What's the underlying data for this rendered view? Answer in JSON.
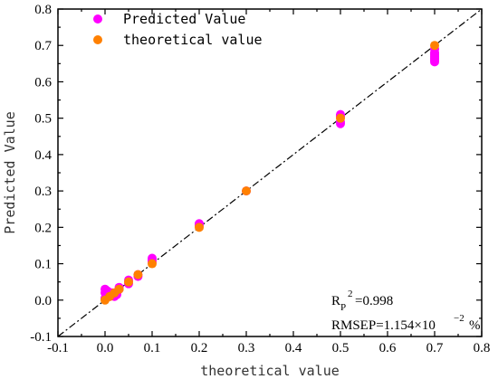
{
  "chart_data": {
    "type": "scatter",
    "xlabel": "theoretical value",
    "ylabel": "Predicted Value",
    "xlim": [
      -0.1,
      0.8
    ],
    "ylim": [
      -0.1,
      0.8
    ],
    "x_ticks": [
      "-0.1",
      "0.0",
      "0.1",
      "0.2",
      "0.3",
      "0.4",
      "0.5",
      "0.6",
      "0.7",
      "0.8"
    ],
    "y_ticks": [
      "-0.1",
      "0.0",
      "0.1",
      "0.2",
      "0.3",
      "0.4",
      "0.5",
      "0.6",
      "0.7",
      "0.8"
    ],
    "x_tick_values": [
      -0.1,
      0.0,
      0.1,
      0.2,
      0.3,
      0.4,
      0.5,
      0.6,
      0.7,
      0.8
    ],
    "y_tick_values": [
      -0.1,
      0.0,
      0.1,
      0.2,
      0.3,
      0.4,
      0.5,
      0.6,
      0.7,
      0.8
    ],
    "legend_position": "top-left",
    "reference_line": {
      "style": "dash-dot",
      "color": "#000000",
      "slope": 1,
      "intercept": 0
    },
    "series": [
      {
        "name": "Predicted Value",
        "color": "#ff00ff",
        "points": [
          [
            0.0,
            0.03
          ],
          [
            0.0,
            0.02
          ],
          [
            0.005,
            0.025
          ],
          [
            0.005,
            0.015
          ],
          [
            0.01,
            0.01
          ],
          [
            0.0,
            0.005
          ],
          [
            0.015,
            0.02
          ],
          [
            0.02,
            0.01
          ],
          [
            0.025,
            0.02
          ],
          [
            0.025,
            0.015
          ],
          [
            0.03,
            0.03
          ],
          [
            0.03,
            0.035
          ],
          [
            0.05,
            0.055
          ],
          [
            0.05,
            0.045
          ],
          [
            0.07,
            0.07
          ],
          [
            0.07,
            0.065
          ],
          [
            0.1,
            0.11
          ],
          [
            0.1,
            0.115
          ],
          [
            0.1,
            0.105
          ],
          [
            0.2,
            0.21
          ],
          [
            0.2,
            0.205
          ],
          [
            0.3,
            0.3
          ],
          [
            0.5,
            0.51
          ],
          [
            0.5,
            0.505
          ],
          [
            0.5,
            0.49
          ],
          [
            0.5,
            0.485
          ],
          [
            0.7,
            0.69
          ],
          [
            0.7,
            0.68
          ],
          [
            0.7,
            0.675
          ],
          [
            0.7,
            0.67
          ],
          [
            0.7,
            0.665
          ],
          [
            0.7,
            0.66
          ],
          [
            0.7,
            0.655
          ]
        ]
      },
      {
        "name": "theoretical value",
        "color": "#ff8000",
        "points": [
          [
            0.0,
            0.0
          ],
          [
            0.01,
            0.01
          ],
          [
            0.02,
            0.02
          ],
          [
            0.03,
            0.03
          ],
          [
            0.05,
            0.05
          ],
          [
            0.07,
            0.07
          ],
          [
            0.1,
            0.1
          ],
          [
            0.2,
            0.2
          ],
          [
            0.3,
            0.3
          ],
          [
            0.5,
            0.5
          ],
          [
            0.7,
            0.7
          ]
        ]
      }
    ],
    "annotations": {
      "rp_main": "R",
      "rp_sub": "P",
      "rp_sup": "2",
      "rp_value": "=0.998",
      "rmsep_main": "RMSEP=1.154×10",
      "rmsep_sup": "−2",
      "rmsep_tail": "%"
    }
  }
}
